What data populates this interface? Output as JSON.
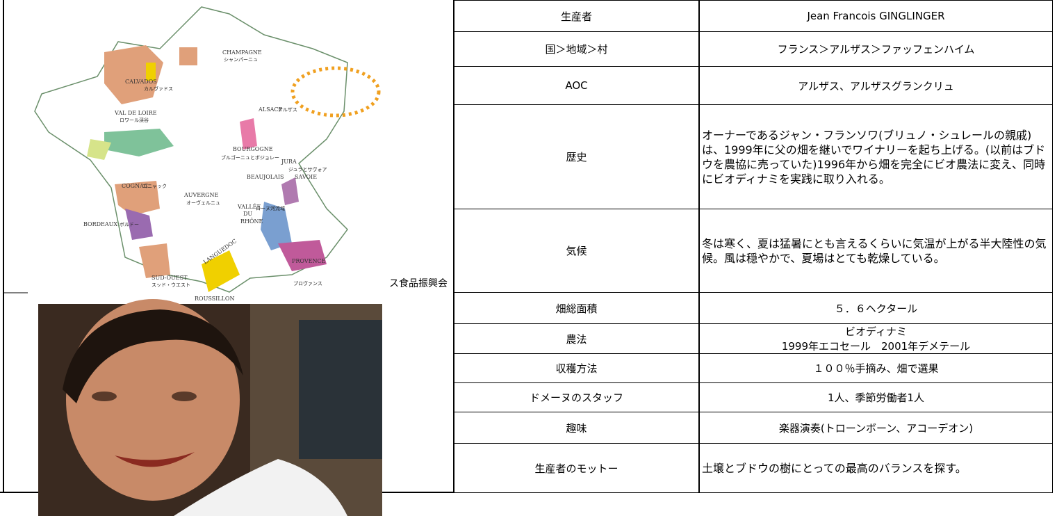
{
  "map": {
    "labels": [
      "CHAMPAGNE",
      "シャンパーニュ",
      "CALVADOS",
      "カルヴァドス",
      "ALSACE",
      "アルザス",
      "VAL DE LOIRE",
      "ロワール渓谷",
      "BOURGOGNE",
      "ブルゴーニュとボジョレー",
      "JURA",
      "ジュラとサヴォア",
      "SAVOIE",
      "BEAUJOLAIS",
      "COGNAC",
      "コニャック",
      "AUVERGNE",
      "オーヴェルニュ",
      "VALLÉE",
      "DU",
      "RHÔNE",
      "ローヌ河流域",
      "BORDEAUX",
      "ボルドー",
      "LANGUEDOC",
      "PROVENCE",
      "SUD-OUEST",
      "スッド・ウエスト",
      "プロヴァンス",
      "ROUSSILLON"
    ],
    "caption": "ス食品振興会"
  },
  "table": {
    "rows": [
      [
        "生産者",
        "Jean Francois GINGLINGER"
      ],
      [
        "国＞地域＞村",
        "フランス＞アルザス＞ファッフェンハイム"
      ],
      [
        "AOC",
        "アルザス、アルザスグランクリュ"
      ],
      [
        "歴史",
        "オーナーであるジャン・フランソワ(ブリュノ・シュレールの親戚)は、1999年に父の畑を継いでワイナリーを起ち上げる。(以前はブドウを農協に売っていた)1996年から畑を完全にビオ農法に変え、同時にビオディナミを実践に取り入れる。"
      ],
      [
        "気候",
        "冬は寒く、夏は猛暑にとも言えるくらいに気温が上がる半大陸性の気候。風は穏やかで、夏場はとても乾燥している。"
      ],
      [
        "畑総面積",
        "５．６ヘクタール"
      ],
      [
        "農法",
        [
          "ビオディナミ",
          "1999年エコセール　2001年デメテール"
        ]
      ],
      [
        "収穫方法",
        "１００％手摘み、畑で選果"
      ],
      [
        "ドメーヌのスタッフ",
        "1人、季節労働者1人"
      ],
      [
        "趣味",
        "楽器演奏(トローンボーン、アコーデオン)"
      ],
      [
        "生産者のモットー",
        "土壌とブドウの樹にとっての最高のバランスを探す。"
      ]
    ]
  }
}
